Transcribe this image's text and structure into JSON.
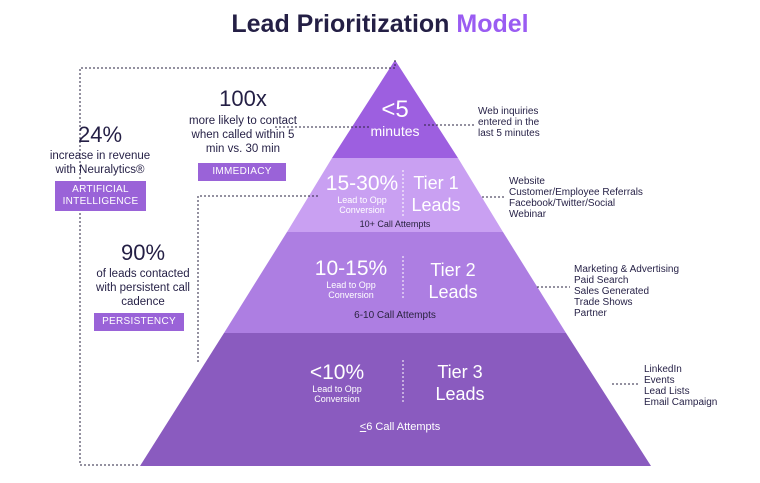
{
  "title": {
    "main": "Lead Prioritization",
    "accent": "Model"
  },
  "pyramid": {
    "top": {
      "value": "<5",
      "unit": "minutes",
      "side": [
        "Web inquiries",
        "entered in the",
        "last 5 minutes"
      ]
    },
    "tier1": {
      "value": "15-30%",
      "sub": [
        "Lead to Opp",
        "Conversion"
      ],
      "label": [
        "Tier 1",
        "Leads"
      ],
      "attempts": "10+ Call Attempts",
      "side": [
        "Website",
        "Customer/Employee Referrals",
        "Facebook/Twitter/Social",
        "Webinar"
      ]
    },
    "tier2": {
      "value": "10-15%",
      "sub": [
        "Lead to Opp",
        "Conversion"
      ],
      "label": [
        "Tier 2",
        "Leads"
      ],
      "attempts": "6-10 Call Attempts",
      "side": [
        "Marketing & Advertising",
        "Paid Search",
        "Sales Generated",
        "Trade Shows",
        "Partner"
      ]
    },
    "tier3": {
      "value": "<10%",
      "sub": [
        "Lead to Opp",
        "Conversion"
      ],
      "label": [
        "Tier 3",
        "Leads"
      ],
      "attempts_prefix": "<",
      "attempts": "6 Call Attempts",
      "side": [
        "LinkedIn",
        "Events",
        "Lead Lists",
        "Email Campaign"
      ]
    }
  },
  "stats": {
    "immediacy": {
      "number": "100x",
      "desc": [
        "more likely to contact",
        "when called within 5",
        "min vs. 30 min"
      ],
      "badge": "IMMEDIACY"
    },
    "ai": {
      "number": "24%",
      "desc": [
        "increase in revenue",
        "with Neuralytics®"
      ],
      "badge": [
        "ARTIFICIAL",
        "INTELLIGENCE"
      ]
    },
    "persistency": {
      "number": "90%",
      "desc": [
        "of leads contacted",
        "with persistent call",
        "cadence"
      ],
      "badge": "PERSISTENCY"
    }
  },
  "colors": {
    "top": "#9d5fe0",
    "tier1": "#c9a0f2",
    "tier2": "#ad7ee2",
    "tier3": "#8a5bbf",
    "badge": "#9a63d8",
    "accent": "#9a5cf2"
  }
}
